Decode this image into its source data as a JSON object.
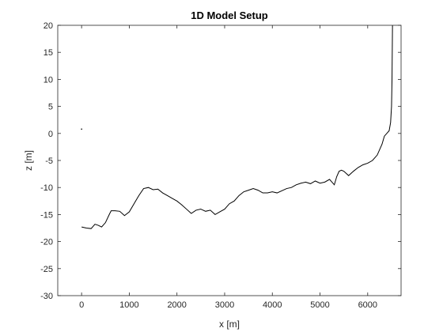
{
  "chart_data": {
    "type": "line",
    "title": "1D Model Setup",
    "xlabel": "x [m]",
    "ylabel": "z [m]",
    "xlim": [
      -500,
      6700
    ],
    "ylim": [
      -30,
      20
    ],
    "xticks": [
      0,
      1000,
      2000,
      3000,
      4000,
      5000,
      6000
    ],
    "yticks": [
      -30,
      -25,
      -20,
      -15,
      -10,
      -5,
      0,
      5,
      10,
      15,
      20
    ],
    "grid": false,
    "line_color": "#000000",
    "series": [
      {
        "x": [
          0,
          100,
          200,
          280,
          350,
          420,
          500,
          580,
          620,
          700,
          800,
          900,
          1000,
          1100,
          1200,
          1300,
          1400,
          1500,
          1600,
          1700,
          1800,
          1900,
          2000,
          2100,
          2200,
          2300,
          2400,
          2500,
          2600,
          2700,
          2800,
          2900,
          3000,
          3100,
          3200,
          3300,
          3400,
          3500,
          3600,
          3700,
          3800,
          3900,
          4000,
          4100,
          4200,
          4300,
          4400,
          4500,
          4600,
          4700,
          4800,
          4900,
          5000,
          5100,
          5200,
          5300,
          5350,
          5400,
          5450,
          5500,
          5600,
          5700,
          5800,
          5900,
          6000,
          6100,
          6200,
          6300,
          6350,
          6400,
          6450,
          6480,
          6500,
          6510,
          6520
        ],
        "values": [
          -17.3,
          -17.5,
          -17.6,
          -16.8,
          -17.0,
          -17.3,
          -16.5,
          -15.0,
          -14.3,
          -14.3,
          -14.4,
          -15.2,
          -14.5,
          -13.0,
          -11.5,
          -10.2,
          -10.0,
          -10.4,
          -10.3,
          -11.0,
          -11.5,
          -12.0,
          -12.5,
          -13.2,
          -14.0,
          -14.8,
          -14.2,
          -14.0,
          -14.4,
          -14.2,
          -15.0,
          -14.5,
          -14.0,
          -13.0,
          -12.5,
          -11.5,
          -10.8,
          -10.5,
          -10.2,
          -10.5,
          -11.0,
          -11.0,
          -10.8,
          -11.0,
          -10.6,
          -10.2,
          -10.0,
          -9.5,
          -9.2,
          -9.0,
          -9.3,
          -8.8,
          -9.2,
          -9.0,
          -8.5,
          -9.5,
          -8.0,
          -7.0,
          -6.8,
          -7.0,
          -7.8,
          -7.0,
          -6.3,
          -5.8,
          -5.5,
          -5.0,
          -4.0,
          -2.0,
          -0.5,
          0.0,
          0.5,
          2.0,
          5.0,
          10.0,
          20.0
        ]
      }
    ],
    "marker_point": {
      "x": 0,
      "value": 0.8
    }
  }
}
